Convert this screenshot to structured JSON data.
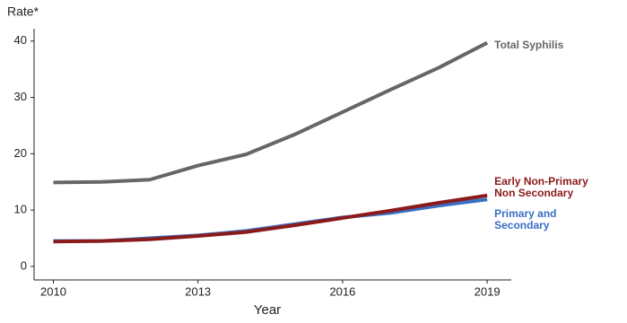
{
  "chart_data": {
    "type": "line",
    "y_label": "Rate*",
    "x_label": "Year",
    "x": [
      2010,
      2011,
      2012,
      2013,
      2014,
      2015,
      2016,
      2017,
      2018,
      2019
    ],
    "series": [
      {
        "name": "Total Syphilis",
        "color": "#666666",
        "values": [
          14.9,
          15.0,
          15.4,
          17.9,
          19.9,
          23.4,
          27.4,
          31.4,
          35.3,
          39.7
        ]
      },
      {
        "name": "Early Non-Primary Non Secondary",
        "color": "#8b1a1a",
        "values": [
          4.4,
          4.5,
          4.8,
          5.4,
          6.1,
          7.3,
          8.6,
          9.9,
          11.3,
          12.6
        ]
      },
      {
        "name": "Primary and Secondary",
        "color": "#3a6fc4",
        "values": [
          4.5,
          4.5,
          5.0,
          5.5,
          6.3,
          7.5,
          8.7,
          9.5,
          10.8,
          11.9
        ]
      }
    ],
    "xlim": [
      2009.6,
      2019.5
    ],
    "xticks": [
      2010,
      2013,
      2016,
      2019
    ],
    "ylim": [
      -2.4,
      42.2
    ],
    "yticks": [
      0,
      10,
      20,
      30,
      40
    ],
    "grid": false
  }
}
